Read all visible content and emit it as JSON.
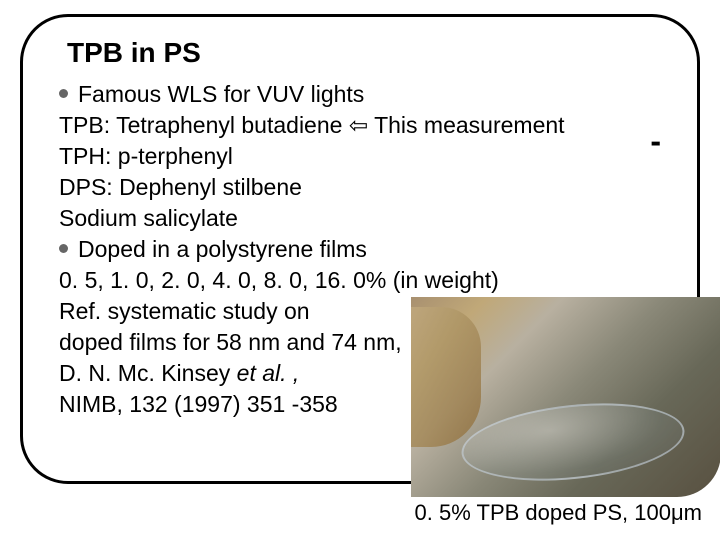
{
  "slide": {
    "title": "TPB in PS",
    "bullet1": "Famous WLS for VUV lights",
    "line_tpb_prefix": "TPB: Tetraphenyl butadiene ",
    "arrow": "⇦",
    "line_tpb_suffix": " This measurement",
    "line_tph": "TPH: p-terphenyl",
    "line_dps": "DPS: Dephenyl stilbene",
    "line_sodium": "Sodium salicylate",
    "bullet2": "Doped in a polystyrene films",
    "line_weights": " 0. 5, 1. 0, 2. 0, 4. 0, 8. 0, 16. 0% (in weight)",
    "line_ref1": "Ref. systematic study on",
    "line_ref2": "doped films for 58 nm and 74 nm,",
    "line_ref3_a": "D. N. Mc. Kinsey ",
    "line_ref3_b": "et al. ,",
    "line_ref4": "NIMB, 132 (1997) 351 -358",
    "dash": "-",
    "caption_a": "0. 5% TPB doped PS, 100",
    "caption_mu": "μ",
    "caption_b": "m"
  },
  "style": {
    "title_fontsize": 28,
    "body_fontsize": 23,
    "caption_fontsize": 22,
    "text_color": "#000000",
    "bullet_color": "#666666",
    "frame_border_color": "#000000",
    "frame_border_radius": 48,
    "background_color": "#ffffff"
  }
}
